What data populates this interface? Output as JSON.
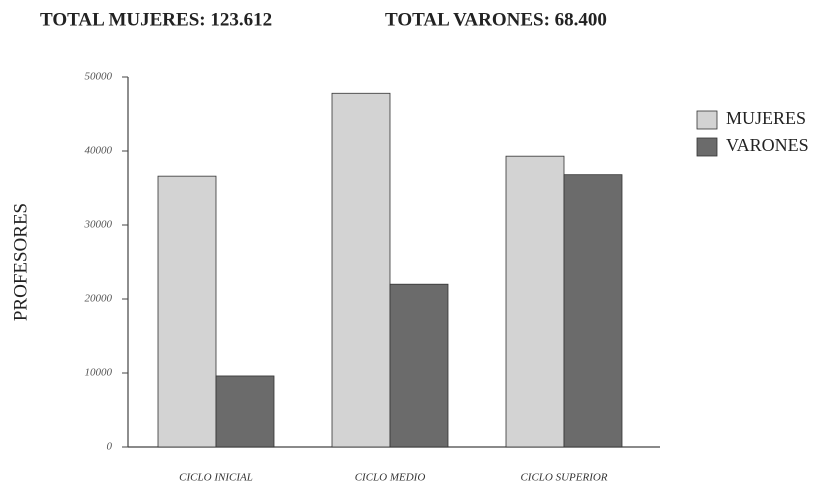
{
  "chart_data": {
    "type": "bar",
    "titles": [
      "TOTAL MUJERES: 123.612",
      "TOTAL VARONES: 68.400"
    ],
    "ylabel": "PROFESORES",
    "categories": [
      "CICLO INICIAL",
      "CICLO MEDIO",
      "CICLO SUPERIOR"
    ],
    "series": [
      {
        "name": "MUJERES",
        "color": "#d3d3d3",
        "values": [
          36600,
          47800,
          39300
        ]
      },
      {
        "name": "VARONES",
        "color": "#6b6b6b",
        "values": [
          9600,
          22000,
          36800
        ]
      }
    ],
    "ylim": [
      0,
      50000
    ],
    "yticks": [
      0,
      10000,
      20000,
      30000,
      40000,
      50000
    ],
    "legend": "right"
  }
}
